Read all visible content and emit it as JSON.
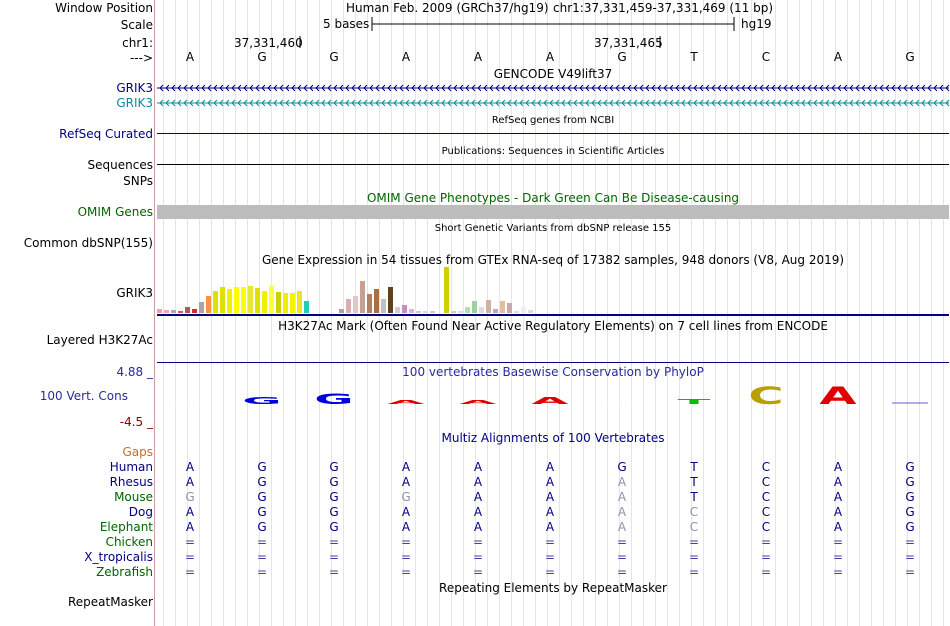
{
  "header": {
    "assembly": "Human Feb. 2009 (GRCh37/hg19)",
    "position": "chr1:37,331,459-37,331,469 (11 bp)",
    "scale_text": "5 bases",
    "scale_db": "hg19",
    "coord_left": "37,331,460",
    "coord_right": "37,331,465",
    "chr_label": "chr1:",
    "arrow_label": "--->",
    "window_label": "Window Position",
    "scale_label": "Scale"
  },
  "bases": [
    "A",
    "G",
    "G",
    "A",
    "A",
    "A",
    "G",
    "T",
    "C",
    "A",
    "G"
  ],
  "tracks": {
    "gencode_title": "GENCODE V49lift37",
    "grik3_label1": "GRIK3",
    "grik3_label2": "GRIK3",
    "refseq_label": "RefSeq Curated",
    "refseq_title": "RefSeq genes from NCBI",
    "pubs_title": "Publications: Sequences in Scientific Articles",
    "sequences_label": "Sequences",
    "snps_label": "SNPs",
    "omim_title": "OMIM Gene Phenotypes - Dark Green Can Be Disease-causing",
    "omim_label": "OMIM Genes",
    "dbsnp_title": "Short Genetic Variants from dbSNP release 155",
    "dbsnp_label": "Common dbSNP(155)",
    "gtex_title": "Gene Expression in 54 tissues from GTEx RNA-seq of 17382 samples, 948 donors (V8, Aug 2019)",
    "gtex_label": "GRIK3",
    "h3k27_title": "H3K27Ac Mark (Often Found Near Active Regulatory Elements) on 7 cell lines from ENCODE",
    "h3k27_label": "Layered H3K27Ac",
    "phylop_title": "100 vertebrates Basewise Conservation by PhyloP",
    "phylop_label": "100 Vert. Cons",
    "phylop_max": "4.88 _",
    "phylop_min": "-4.5 _",
    "multiz_title": "Multiz Alignments of 100 Vertebrates",
    "gaps_label": "Gaps",
    "repeat_title": "Repeating Elements by RepeatMasker",
    "repeat_label": "RepeatMasker"
  },
  "conservation": [
    "",
    "G",
    "G",
    "A",
    "A",
    "A",
    "",
    "T",
    "C",
    "A",
    ""
  ],
  "species": [
    {
      "name": "Human",
      "color": "#000080",
      "bases": [
        "A",
        "G",
        "G",
        "A",
        "A",
        "A",
        "G",
        "T",
        "C",
        "A",
        "G"
      ]
    },
    {
      "name": "Rhesus",
      "color": "#000080",
      "bases": [
        "A",
        "G",
        "G",
        "A",
        "A",
        "A",
        "A",
        "T",
        "C",
        "A",
        "G"
      ]
    },
    {
      "name": "Mouse",
      "color": "#006400",
      "bases": [
        "G",
        "G",
        "G",
        "G",
        "A",
        "A",
        "A",
        "T",
        "C",
        "A",
        "G"
      ]
    },
    {
      "name": "Dog",
      "color": "#000080",
      "bases": [
        "A",
        "G",
        "G",
        "A",
        "A",
        "A",
        "A",
        "C",
        "C",
        "A",
        "G"
      ]
    },
    {
      "name": "Elephant",
      "color": "#006400",
      "bases": [
        "A",
        "G",
        "G",
        "A",
        "A",
        "A",
        "A",
        "C",
        "C",
        "A",
        "G"
      ]
    },
    {
      "name": "Chicken",
      "color": "#006400",
      "bases": [
        "=",
        "=",
        "=",
        "=",
        "=",
        "=",
        "=",
        "=",
        "=",
        "=",
        "="
      ]
    },
    {
      "name": "X_tropicalis",
      "color": "#000080",
      "bases": [
        "=",
        "=",
        "=",
        "=",
        "=",
        "=",
        "=",
        "=",
        "=",
        "=",
        "="
      ]
    },
    {
      "name": "Zebrafish",
      "color": "#006400",
      "bases": [
        "=",
        "=",
        "=",
        "=",
        "=",
        "=",
        "=",
        "=",
        "=",
        "=",
        "="
      ]
    }
  ],
  "colors": {
    "navy": "#000080",
    "teal": "#0a8a9a",
    "omim_green": "#006400",
    "gaps": "#d2691e",
    "phylop_red": "#8b0000"
  }
}
